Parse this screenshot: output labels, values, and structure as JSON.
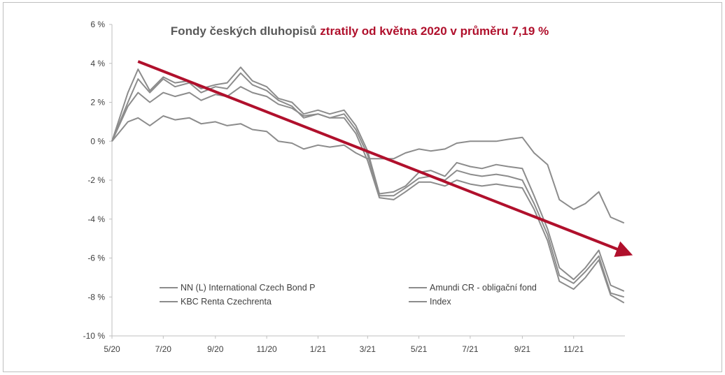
{
  "chart_data": {
    "type": "line",
    "title_part1": "Fondy českých dluhopisů ",
    "title_part2": "ztratily od května 2020 v průměru 7,19 %",
    "colors": {
      "series": "#8c8c8c",
      "accent": "#b0102c",
      "axis": "#bfbfbf",
      "text": "#404040"
    },
    "x_ticks": [
      "5/20",
      "7/20",
      "9/20",
      "11/20",
      "1/21",
      "3/21",
      "5/21",
      "7/21",
      "9/21",
      "11/21"
    ],
    "y_ticks": [
      "6 %",
      "4 %",
      "2 %",
      "0 %",
      "-2 %",
      "-4 %",
      "-6 %",
      "-8 %",
      "-10 %"
    ],
    "ylim": [
      -10,
      6
    ],
    "grid": false,
    "legend_position": "bottom-inside",
    "trend_arrow": {
      "from": {
        "date": "2020-06-01",
        "value": 4.1
      },
      "to": {
        "date": "2022-01-01",
        "value": -5.7
      }
    },
    "x": [
      "2020-05-01",
      "2020-05-20",
      "2020-06-01",
      "2020-06-15",
      "2020-07-01",
      "2020-07-15",
      "2020-08-01",
      "2020-08-15",
      "2020-09-01",
      "2020-09-15",
      "2020-10-01",
      "2020-10-15",
      "2020-11-01",
      "2020-11-15",
      "2020-12-01",
      "2020-12-15",
      "2021-01-01",
      "2021-01-15",
      "2021-02-01",
      "2021-02-15",
      "2021-03-01",
      "2021-03-15",
      "2021-04-01",
      "2021-04-15",
      "2021-05-01",
      "2021-05-15",
      "2021-06-01",
      "2021-06-15",
      "2021-07-01",
      "2021-07-15",
      "2021-08-01",
      "2021-08-15",
      "2021-09-01",
      "2021-09-15",
      "2021-10-01",
      "2021-10-15",
      "2021-11-01",
      "2021-11-15",
      "2021-12-01",
      "2021-12-15",
      "2021-12-31"
    ],
    "series": [
      {
        "name": "NN (L) International Czech Bond P",
        "values": [
          0.0,
          2.5,
          3.7,
          2.6,
          3.3,
          3.0,
          3.1,
          2.7,
          2.9,
          3.0,
          3.8,
          3.1,
          2.8,
          2.2,
          2.0,
          1.4,
          1.6,
          1.4,
          1.6,
          0.8,
          -0.5,
          -2.7,
          -2.6,
          -2.3,
          -1.6,
          -1.5,
          -1.8,
          -1.1,
          -1.3,
          -1.4,
          -1.2,
          -1.3,
          -1.4,
          -2.8,
          -4.5,
          -6.5,
          -7.1,
          -6.5,
          -5.6,
          -7.4,
          -7.7
        ]
      },
      {
        "name": "Amundi CR - obligační fond",
        "values": [
          0.0,
          2.0,
          3.2,
          2.5,
          3.2,
          2.8,
          3.0,
          2.5,
          2.8,
          2.7,
          3.5,
          2.9,
          2.6,
          2.1,
          1.8,
          1.2,
          1.4,
          1.2,
          1.4,
          0.6,
          -0.7,
          -2.8,
          -2.8,
          -2.4,
          -1.9,
          -1.8,
          -2.0,
          -1.5,
          -1.7,
          -1.8,
          -1.7,
          -1.8,
          -2.0,
          -3.2,
          -4.8,
          -6.9,
          -7.3,
          -6.7,
          -5.9,
          -7.8,
          -8.0
        ]
      },
      {
        "name": "KBC Renta Czechrenta",
        "values": [
          0.0,
          1.8,
          2.5,
          2.0,
          2.5,
          2.3,
          2.5,
          2.1,
          2.4,
          2.3,
          2.8,
          2.5,
          2.3,
          1.9,
          1.7,
          1.3,
          1.4,
          1.2,
          1.2,
          0.4,
          -1.0,
          -2.9,
          -3.0,
          -2.6,
          -2.1,
          -2.1,
          -2.3,
          -2.0,
          -2.2,
          -2.3,
          -2.2,
          -2.3,
          -2.4,
          -3.5,
          -5.1,
          -7.2,
          -7.6,
          -7.0,
          -6.1,
          -7.9,
          -8.3
        ]
      },
      {
        "name": "Index",
        "values": [
          0.0,
          1.0,
          1.2,
          0.8,
          1.3,
          1.1,
          1.2,
          0.9,
          1.0,
          0.8,
          0.9,
          0.6,
          0.5,
          0.0,
          -0.1,
          -0.4,
          -0.2,
          -0.3,
          -0.2,
          -0.6,
          -0.9,
          -0.9,
          -0.9,
          -0.6,
          -0.4,
          -0.5,
          -0.4,
          -0.1,
          0.0,
          0.0,
          0.0,
          0.1,
          0.2,
          -0.6,
          -1.2,
          -3.0,
          -3.5,
          -3.2,
          -2.6,
          -3.9,
          -4.2
        ]
      }
    ]
  }
}
